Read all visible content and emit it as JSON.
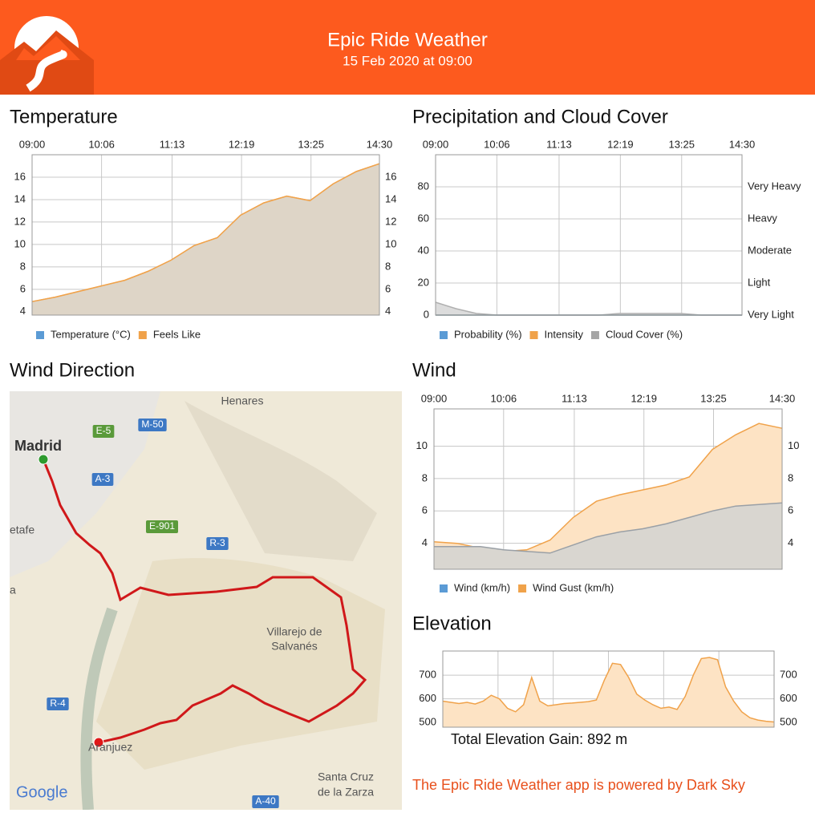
{
  "header": {
    "title": "Epic Ride Weather",
    "subtitle": "15 Feb 2020 at 09:00"
  },
  "chart_data": [
    {
      "type": "area",
      "title": "Temperature",
      "x": [
        "09:00",
        "09:22",
        "09:44",
        "10:06",
        "10:28",
        "10:50",
        "11:12",
        "11:34",
        "11:56",
        "12:18",
        "12:40",
        "13:02",
        "13:24",
        "13:46",
        "14:08",
        "14:30"
      ],
      "xlim": [
        "09:00",
        "14:30"
      ],
      "xticks": [
        "09:00",
        "10:06",
        "11:13",
        "12:19",
        "13:25",
        "14:30"
      ],
      "ylim": [
        3.7,
        18
      ],
      "yticks": [
        4,
        6,
        8,
        10,
        12,
        14,
        16
      ],
      "series": [
        {
          "name": "Temperature (°C)",
          "color": "#5b9bd5",
          "line": "#f0a24a",
          "fill": "#ded5c7",
          "values": [
            4.9,
            5.3,
            5.8,
            6.3,
            6.8,
            7.6,
            8.6,
            9.9,
            10.6,
            12.6,
            13.7,
            14.3,
            13.9,
            15.4,
            16.5,
            17.2
          ]
        },
        {
          "name": "Feels Like",
          "color": "#f0a24a",
          "line": "#f0a24a",
          "fill": "#ded5c7",
          "values": [
            4.9,
            5.3,
            5.8,
            6.3,
            6.8,
            7.6,
            8.6,
            9.9,
            10.6,
            12.6,
            13.7,
            14.3,
            13.9,
            15.4,
            16.5,
            17.2
          ]
        }
      ]
    },
    {
      "type": "area",
      "title": "Precipitation and Cloud Cover",
      "x": [
        "09:00",
        "09:22",
        "09:44",
        "10:06",
        "10:28",
        "10:50",
        "11:12",
        "11:34",
        "11:56",
        "12:18",
        "12:40",
        "13:02",
        "13:24",
        "13:46",
        "14:08",
        "14:30"
      ],
      "xlim": [
        "09:00",
        "14:30"
      ],
      "xticks": [
        "09:00",
        "10:06",
        "11:13",
        "12:19",
        "13:25",
        "14:30"
      ],
      "ylim": [
        0,
        100
      ],
      "yticks": [
        0,
        20,
        40,
        60,
        80
      ],
      "y2lim": [
        0,
        100
      ],
      "y2ticks": [
        {
          "value": 0,
          "label": "Very Light"
        },
        {
          "value": 20,
          "label": "Light"
        },
        {
          "value": 40,
          "label": "Moderate"
        },
        {
          "value": 60,
          "label": "Heavy"
        },
        {
          "value": 80,
          "label": "Very Heavy"
        }
      ],
      "series": [
        {
          "name": "Probability (%)",
          "color": "#5b9bd5",
          "line": "#5b9bd5",
          "values": [
            0,
            0,
            0,
            0,
            0,
            0,
            0,
            0,
            0,
            0,
            0,
            0,
            0,
            0,
            0,
            0
          ]
        },
        {
          "name": "Intensity",
          "color": "#f0a24a",
          "line": "#f0a24a",
          "values": [
            0,
            0,
            0,
            0,
            0,
            0,
            0,
            0,
            0,
            0,
            0,
            0,
            0,
            0,
            0,
            0
          ]
        },
        {
          "name": "Cloud Cover (%)",
          "color": "#a5a5a5",
          "line": "#b0b0b0",
          "fill": "#dcdcdc",
          "values": [
            8,
            4,
            1,
            0,
            0,
            0,
            0,
            0,
            0,
            1,
            1,
            1,
            1,
            0,
            0,
            0
          ]
        }
      ]
    },
    {
      "type": "area",
      "title": "Wind",
      "x": [
        "09:00",
        "09:22",
        "09:44",
        "10:06",
        "10:28",
        "10:50",
        "11:12",
        "11:34",
        "11:56",
        "12:18",
        "12:40",
        "13:02",
        "13:24",
        "13:46",
        "14:08",
        "14:30"
      ],
      "xlim": [
        "09:00",
        "14:30"
      ],
      "xticks": [
        "09:00",
        "10:06",
        "11:13",
        "12:19",
        "13:25",
        "14:30"
      ],
      "ylim": [
        2.4,
        12.3
      ],
      "yticks": [
        4,
        6,
        8,
        10
      ],
      "series": [
        {
          "name": "Wind (km/h)",
          "color": "#5b9bd5",
          "line": "#9aa0a6",
          "fill": "#d9d6d0",
          "values": [
            3.8,
            3.8,
            3.8,
            3.6,
            3.5,
            3.4,
            3.9,
            4.4,
            4.7,
            4.9,
            5.2,
            5.6,
            6.0,
            6.3,
            6.4,
            6.5
          ]
        },
        {
          "name": "Wind Gust (km/h)",
          "color": "#f0a24a",
          "line": "#f0a24a",
          "fill": "#fde3c4",
          "values": [
            4.1,
            4.0,
            3.7,
            3.5,
            3.6,
            4.2,
            5.6,
            6.6,
            7.0,
            7.3,
            7.6,
            8.1,
            9.8,
            10.7,
            11.4,
            11.1
          ]
        }
      ]
    },
    {
      "type": "area",
      "title": "Elevation",
      "annotation": "Total Elevation Gain: 892 m",
      "ylim": [
        480,
        802
      ],
      "yticks": [
        500,
        600,
        700
      ],
      "line": "#f0a24a",
      "fill": "#fde3c4",
      "values": [
        590,
        585,
        580,
        585,
        578,
        590,
        615,
        600,
        560,
        545,
        575,
        690,
        590,
        570,
        575,
        580,
        582,
        585,
        588,
        595,
        680,
        750,
        745,
        690,
        620,
        595,
        575,
        560,
        565,
        555,
        610,
        700,
        770,
        775,
        765,
        650,
        590,
        545,
        520,
        510,
        505,
        502
      ]
    }
  ],
  "map": {
    "title": "Wind Direction",
    "places": [
      "Henares",
      "Madrid",
      "etafe",
      "a",
      "Villarejo de",
      "Salvanés",
      "Aranjuez",
      "Santa Cruz",
      "de la Zarza",
      "Google"
    ],
    "roads": [
      {
        "label": "E-5",
        "color": "#5a9a3a"
      },
      {
        "label": "M-50",
        "color": "#3d78c4"
      },
      {
        "label": "A-3",
        "color": "#3d78c4"
      },
      {
        "label": "E-901",
        "color": "#5a9a3a"
      },
      {
        "label": "R-3",
        "color": "#3d78c4"
      },
      {
        "label": "R-4",
        "color": "#3d78c4"
      },
      {
        "label": "A-40",
        "color": "#3d78c4"
      }
    ]
  },
  "footer": "The Epic Ride Weather app is powered by Dark Sky"
}
